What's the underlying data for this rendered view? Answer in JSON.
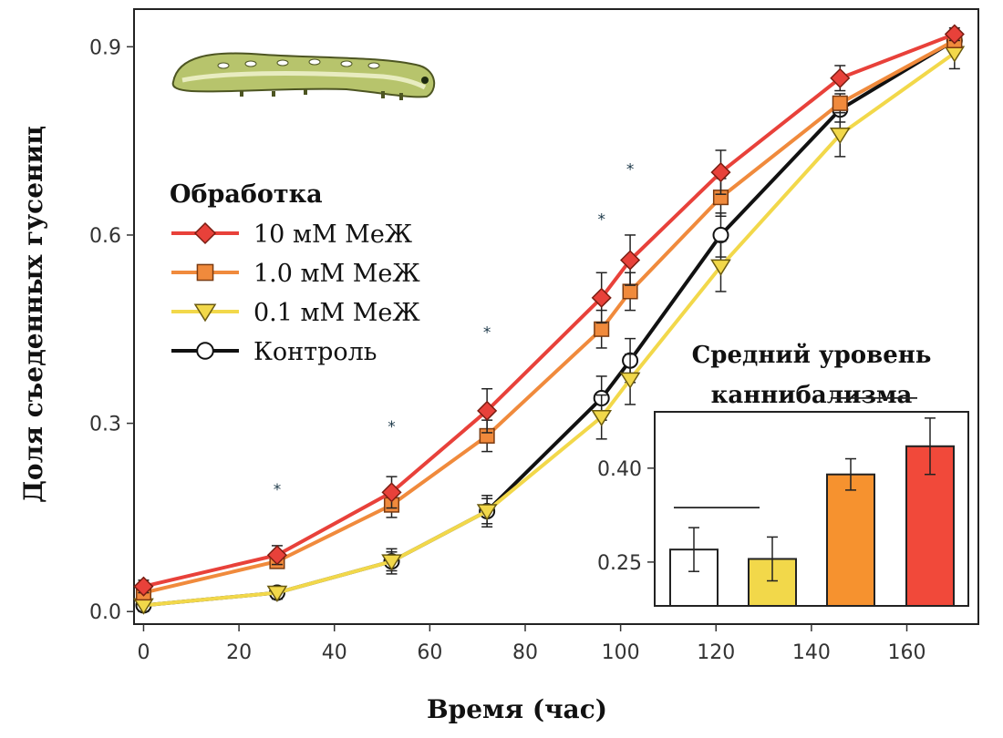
{
  "chart_data": {
    "type": "line",
    "xlabel": "Время (час)",
    "ylabel": "Доля съеденных гусениц",
    "xlim": [
      -2,
      175
    ],
    "ylim": [
      -0.02,
      0.96
    ],
    "x_ticks": [
      "0",
      "20",
      "40",
      "60",
      "80",
      "100",
      "120",
      "140",
      "160"
    ],
    "y_ticks": [
      "0.0",
      "0.3",
      "0.6",
      "0.9"
    ],
    "legend": {
      "title": "Обработка",
      "placement": "left-middle"
    },
    "series": [
      {
        "name": "10 мМ МеЖ",
        "color": "#e8413a",
        "marker": "diamond",
        "x": [
          0,
          28,
          52,
          72,
          96,
          102,
          121,
          146,
          170
        ],
        "y": [
          0.04,
          0.09,
          0.19,
          0.32,
          0.5,
          0.56,
          0.7,
          0.85,
          0.92
        ],
        "err": [
          0.01,
          0.015,
          0.025,
          0.035,
          0.04,
          0.04,
          0.035,
          0.02,
          0.01
        ]
      },
      {
        "name": "1.0 мМ МеЖ",
        "color": "#f08a3c",
        "marker": "square",
        "x": [
          0,
          28,
          52,
          72,
          96,
          102,
          121,
          146,
          170
        ],
        "y": [
          0.03,
          0.08,
          0.17,
          0.28,
          0.45,
          0.51,
          0.66,
          0.81,
          0.91
        ],
        "err": [
          0.01,
          0.01,
          0.02,
          0.025,
          0.03,
          0.03,
          0.03,
          0.015,
          0.01
        ]
      },
      {
        "name": "0.1 мМ МеЖ",
        "color": "#f2d84a",
        "marker": "triangle-down",
        "x": [
          0,
          28,
          52,
          72,
          96,
          102,
          121,
          146,
          170
        ],
        "y": [
          0.01,
          0.03,
          0.08,
          0.16,
          0.31,
          0.37,
          0.55,
          0.76,
          0.89
        ],
        "err": [
          0.01,
          0.01,
          0.02,
          0.025,
          0.035,
          0.04,
          0.04,
          0.035,
          0.025
        ]
      },
      {
        "name": "Контроль",
        "color": "#111111",
        "marker": "circle-open",
        "x": [
          0,
          28,
          52,
          72,
          96,
          102,
          121,
          146,
          170
        ],
        "y": [
          0.01,
          0.03,
          0.08,
          0.16,
          0.34,
          0.4,
          0.6,
          0.8,
          0.91
        ],
        "err": [
          0.005,
          0.01,
          0.015,
          0.02,
          0.035,
          0.035,
          0.035,
          0.02,
          0.01
        ]
      }
    ],
    "significance_markers": {
      "symbol": "*",
      "x": [
        28,
        52,
        72,
        96,
        102
      ],
      "y": [
        0.195,
        0.295,
        0.445,
        0.625,
        0.705
      ]
    },
    "inset": {
      "type": "bar",
      "title_lines": [
        "Средний уровень",
        "каннибализма"
      ],
      "categories": [
        "Контроль",
        "0.1 мМ МеЖ",
        "1.0 мМ МеЖ",
        "10 мМ МеЖ"
      ],
      "values": [
        0.27,
        0.255,
        0.39,
        0.435
      ],
      "err": [
        0.035,
        0.035,
        0.025,
        0.045
      ],
      "colors": [
        "#ffffff",
        "#f2d84a",
        "#f6922f",
        "#f1493a"
      ],
      "y_ticks": [
        "0.25",
        "0.40"
      ],
      "ylim": [
        0.18,
        0.49
      ],
      "group_lines": [
        [
          0,
          1
        ],
        [
          2,
          3
        ]
      ]
    }
  }
}
